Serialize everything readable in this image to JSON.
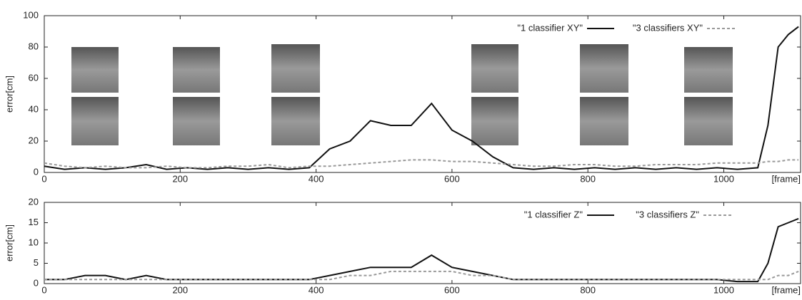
{
  "chart_data": [
    {
      "type": "line",
      "ylabel": "error[cm]",
      "xlabel": "[frame]",
      "x": [
        0,
        30,
        60,
        90,
        120,
        150,
        180,
        210,
        240,
        270,
        300,
        330,
        360,
        390,
        420,
        450,
        480,
        510,
        540,
        570,
        600,
        630,
        660,
        690,
        720,
        750,
        780,
        810,
        840,
        870,
        900,
        930,
        960,
        990,
        1020,
        1050,
        1065,
        1080,
        1095,
        1110
      ],
      "series": [
        {
          "name": "\"1 classifier XY\"",
          "color": "#111111",
          "dash": false,
          "values": [
            4,
            2,
            3,
            2,
            3,
            5,
            2,
            3,
            2,
            3,
            2,
            3,
            2,
            3,
            15,
            20,
            33,
            30,
            30,
            44,
            27,
            20,
            10,
            3,
            2,
            3,
            2,
            3,
            2,
            3,
            2,
            3,
            2,
            3,
            2,
            3,
            30,
            80,
            88,
            93
          ]
        },
        {
          "name": "\"3 classifiers XY\"",
          "color": "#999999",
          "dash": true,
          "values": [
            6,
            4,
            3,
            4,
            3,
            3,
            4,
            3,
            3,
            4,
            4,
            5,
            3,
            4,
            4,
            5,
            6,
            7,
            8,
            8,
            7,
            7,
            6,
            5,
            4,
            4,
            5,
            5,
            4,
            4,
            5,
            5,
            5,
            6,
            6,
            6,
            7,
            7,
            8,
            8
          ]
        }
      ],
      "xlim": [
        0,
        1113
      ],
      "ylim": [
        0,
        100
      ],
      "xticks": [
        0,
        200,
        400,
        600,
        800,
        1000
      ],
      "yticks": [
        0,
        20,
        40,
        60,
        80,
        100
      ]
    },
    {
      "type": "line",
      "ylabel": "error[cm]",
      "xlabel": "[frame]",
      "x": [
        0,
        30,
        60,
        90,
        120,
        150,
        180,
        210,
        240,
        270,
        300,
        330,
        360,
        390,
        420,
        450,
        480,
        510,
        540,
        570,
        600,
        630,
        660,
        690,
        720,
        750,
        780,
        810,
        840,
        870,
        900,
        930,
        960,
        990,
        1020,
        1050,
        1065,
        1080,
        1095,
        1110
      ],
      "series": [
        {
          "name": "\"1 classifier Z\"",
          "color": "#111111",
          "dash": false,
          "values": [
            1,
            1,
            2,
            2,
            1,
            2,
            1,
            1,
            1,
            1,
            1,
            1,
            1,
            1,
            2,
            3,
            4,
            4,
            4,
            7,
            4,
            3,
            2,
            1,
            1,
            1,
            1,
            1,
            1,
            1,
            1,
            1,
            1,
            1,
            0.5,
            0.5,
            5,
            14,
            15,
            16
          ]
        },
        {
          "name": "\"3 classifiers Z\"",
          "color": "#999999",
          "dash": true,
          "values": [
            1,
            1,
            1,
            1,
            1,
            1,
            1,
            1,
            1,
            1,
            1,
            1,
            1,
            1,
            1,
            2,
            2,
            3,
            3,
            3,
            3,
            2,
            2,
            1,
            1,
            1,
            1,
            1,
            1,
            1,
            1,
            1,
            1,
            1,
            1,
            1,
            1,
            2,
            2,
            3
          ]
        }
      ],
      "xlim": [
        0,
        1113
      ],
      "ylim": [
        0,
        20
      ],
      "xticks": [
        0,
        200,
        400,
        600,
        800,
        1000
      ],
      "yticks": [
        0,
        5,
        10,
        15,
        20
      ]
    }
  ]
}
